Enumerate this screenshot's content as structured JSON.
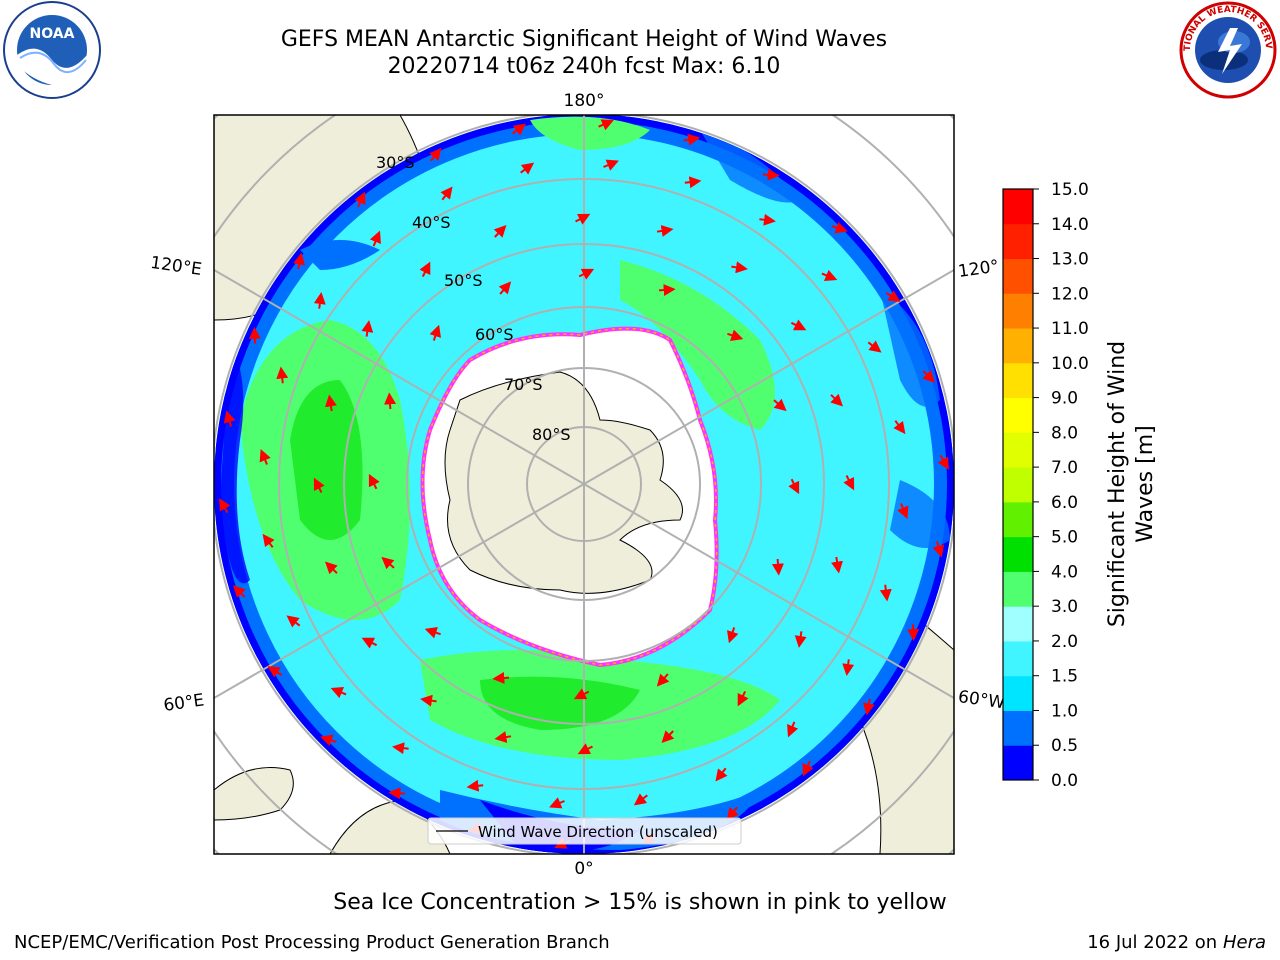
{
  "header": {
    "title_line1": "GEFS MEAN Antarctic Significant Height of Wind Waves",
    "title_line2": "20220714 t06z 240h fcst   Max: 6.10"
  },
  "logos": {
    "left": {
      "icon": "noaa-logo-icon",
      "text": "NOAA"
    },
    "right": {
      "icon": "nws-logo-icon",
      "text": "NATIONAL WEATHER SERVICE"
    }
  },
  "map": {
    "projection": "south-polar-stereographic",
    "longitude_labels": {
      "top": "180°",
      "bottom": "0°",
      "upper_left": "120°E",
      "upper_right": "120°",
      "lower_left": "60°E",
      "lower_right": "60°W"
    },
    "latitude_labels": [
      "30°S",
      "40°S",
      "50°S",
      "60°S",
      "70°S",
      "80°S"
    ],
    "legend": {
      "label": "Wind Wave Direction (unscaled)"
    },
    "colors": {
      "land": "#efeedb",
      "ice": "#ffffff",
      "ice_edge": "#ff33ff",
      "arrow": "#ff0000",
      "grid": "#b0b0b0"
    }
  },
  "colorbar": {
    "label_line1": "Significant Height of Wind",
    "label_line2": "Waves [m]",
    "ticks": [
      "0.0",
      "0.5",
      "1.0",
      "1.5",
      "2.0",
      "3.0",
      "4.0",
      "5.0",
      "6.0",
      "7.0",
      "8.0",
      "9.0",
      "10.0",
      "11.0",
      "12.0",
      "13.0",
      "14.0",
      "15.0"
    ],
    "colors": [
      "#0000ff",
      "#0070ff",
      "#00e5ff",
      "#40f5ff",
      "#a0ffff",
      "#50ff70",
      "#00e000",
      "#60f000",
      "#c0ff00",
      "#e0ff00",
      "#ffff00",
      "#ffe000",
      "#ffb000",
      "#ff8000",
      "#ff5000",
      "#ff2000",
      "#ff0000"
    ]
  },
  "subtitle": "Sea Ice Concentration > 15% is shown in pink to yellow",
  "footer": {
    "left": "NCEP/EMC/Verification Post Processing Product Generation Branch",
    "right_prefix": "16 Jul 2022 on ",
    "right_italic": "Hera"
  }
}
